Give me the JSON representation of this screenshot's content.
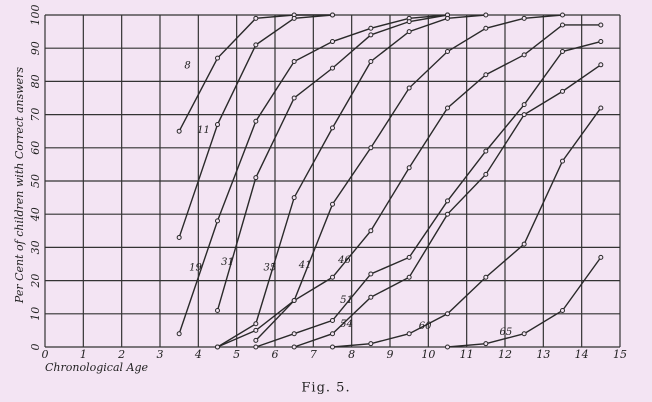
{
  "chart_data": {
    "type": "line",
    "caption": "Fig. 5.",
    "x_label": "Chronological Age",
    "y_label": "Per Cent of children with Correct answers",
    "x": [
      3.5,
      4.5,
      5.5,
      6.5,
      7.5,
      8.5,
      9.5,
      10.5,
      11.5,
      12.5,
      13.5,
      14.5
    ],
    "series": [
      {
        "name": "8",
        "color": "#2a2a2a",
        "values": [
          65,
          87,
          99,
          100,
          100,
          null,
          null,
          null,
          null,
          null,
          null,
          null
        ]
      },
      {
        "name": "11",
        "color": "#2a2a2a",
        "values": [
          33,
          67,
          91,
          99,
          100,
          null,
          null,
          null,
          null,
          null,
          null,
          null
        ]
      },
      {
        "name": "19",
        "color": "#2a2a2a",
        "values": [
          4,
          38,
          68,
          86,
          92,
          96,
          99,
          100,
          null,
          null,
          null,
          null
        ]
      },
      {
        "name": "31",
        "color": "#2a2a2a",
        "values": [
          null,
          11,
          51,
          75,
          84,
          94,
          98,
          100,
          null,
          null,
          null,
          null
        ]
      },
      {
        "name": "35",
        "color": "#2a2a2a",
        "values": [
          null,
          0,
          7,
          45,
          66,
          86,
          95,
          99,
          100,
          null,
          null,
          null
        ]
      },
      {
        "name": "41",
        "color": "#2a2a2a",
        "values": [
          null,
          0,
          5,
          14,
          43,
          60,
          78,
          89,
          96,
          99,
          100,
          null
        ]
      },
      {
        "name": "46",
        "color": "#2a2a2a",
        "values": [
          null,
          null,
          2,
          14,
          21,
          35,
          54,
          72,
          82,
          88,
          97,
          97
        ]
      },
      {
        "name": "51",
        "color": "#2a2a2a",
        "values": [
          null,
          null,
          0,
          4,
          8,
          22,
          27,
          44,
          59,
          73,
          89,
          92
        ]
      },
      {
        "name": "54",
        "color": "#2a2a2a",
        "values": [
          null,
          null,
          null,
          0,
          4,
          15,
          21,
          40,
          52,
          70,
          77,
          85
        ]
      },
      {
        "name": "60",
        "color": "#2a2a2a",
        "values": [
          null,
          null,
          null,
          null,
          0,
          1,
          4,
          10,
          21,
          31,
          56,
          72
        ]
      },
      {
        "name": "65",
        "color": "#2a2a2a",
        "values": [
          null,
          null,
          null,
          null,
          null,
          null,
          null,
          0,
          1,
          4,
          11,
          27
        ]
      }
    ],
    "xlim": [
      0,
      15
    ],
    "xticks": [
      0,
      1,
      2,
      3,
      4,
      5,
      6,
      7,
      8,
      9,
      10,
      11,
      12,
      13,
      14,
      15
    ],
    "ylim": [
      0,
      100
    ],
    "yticks": [
      0,
      10,
      20,
      30,
      40,
      50,
      60,
      70,
      80,
      90,
      100
    ],
    "grid": true
  }
}
